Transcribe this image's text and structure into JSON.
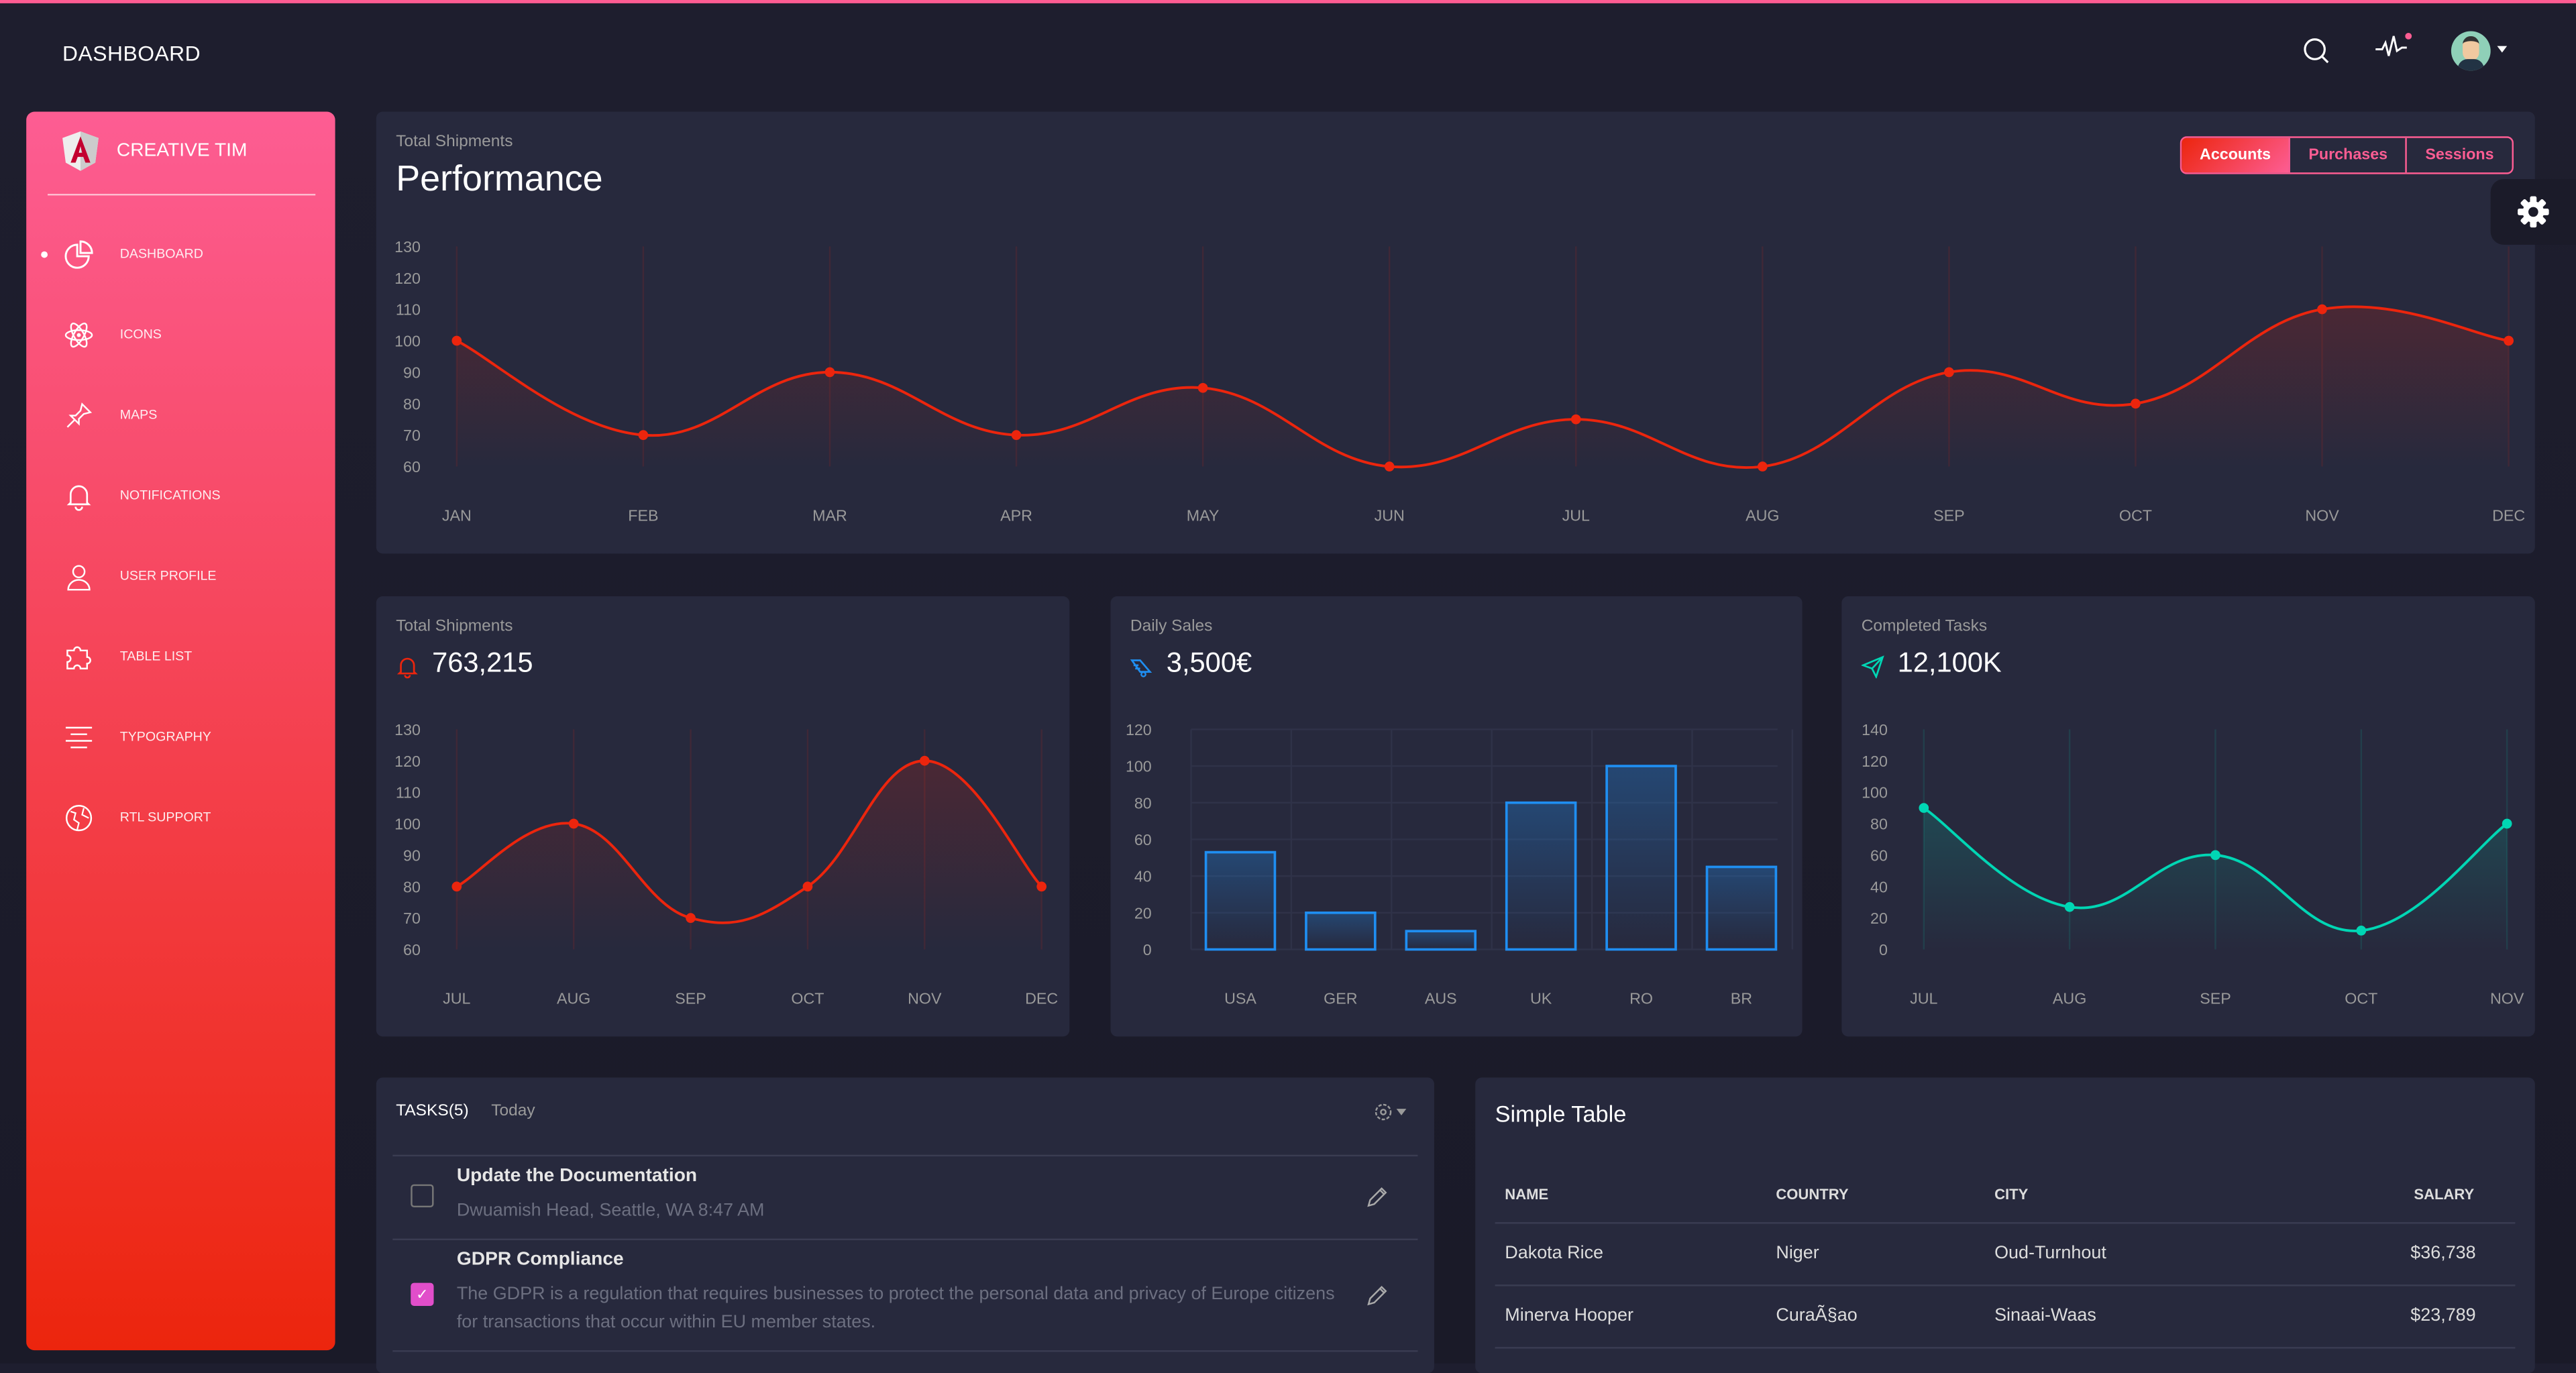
{
  "header": {
    "title": "DASHBOARD",
    "icons": [
      "search-icon",
      "pulse-icon",
      "avatar",
      "caret-down-icon"
    ]
  },
  "sidebar": {
    "brand": "CREATIVE TIM",
    "items": [
      {
        "label": "DASHBOARD",
        "icon": "chart-pie-icon",
        "active": true
      },
      {
        "label": "ICONS",
        "icon": "atom-icon"
      },
      {
        "label": "MAPS",
        "icon": "pin-icon"
      },
      {
        "label": "NOTIFICATIONS",
        "icon": "bell-icon"
      },
      {
        "label": "USER PROFILE",
        "icon": "user-icon"
      },
      {
        "label": "TABLE LIST",
        "icon": "puzzle-icon"
      },
      {
        "label": "TYPOGRAPHY",
        "icon": "align-center-icon"
      },
      {
        "label": "RTL SUPPORT",
        "icon": "world-icon"
      }
    ]
  },
  "colors": {
    "accent": "#fd5d93",
    "red": "#ec250d",
    "blue": "#1f8ef1",
    "green": "#00d6b4",
    "card": "#27293d"
  },
  "performance": {
    "subtitle": "Total Shipments",
    "title": "Performance",
    "buttons": [
      "Accounts",
      "Purchases",
      "Sessions"
    ],
    "active_button": "Accounts"
  },
  "cards": [
    {
      "title": "Total Shipments",
      "value": "763,215",
      "icon": "bell-icon"
    },
    {
      "title": "Daily Sales",
      "value": "3,500€",
      "icon": "delivery-icon"
    },
    {
      "title": "Completed Tasks",
      "value": "12,100K",
      "icon": "send-icon"
    }
  ],
  "chart_data": [
    {
      "type": "line",
      "categories": [
        "JAN",
        "FEB",
        "MAR",
        "APR",
        "MAY",
        "JUN",
        "JUL",
        "AUG",
        "SEP",
        "OCT",
        "NOV",
        "DEC"
      ],
      "values": [
        100,
        70,
        90,
        70,
        85,
        60,
        75,
        60,
        90,
        80,
        110,
        100
      ],
      "ylim": [
        60,
        130
      ],
      "yticks": [
        60,
        70,
        80,
        90,
        100,
        110,
        120,
        130
      ],
      "color": "#ec250d",
      "grid": "vertical"
    },
    {
      "type": "line",
      "categories": [
        "JUL",
        "AUG",
        "SEP",
        "OCT",
        "NOV",
        "DEC"
      ],
      "values": [
        80,
        100,
        70,
        80,
        120,
        80
      ],
      "ylim": [
        60,
        130
      ],
      "yticks": [
        60,
        70,
        80,
        90,
        100,
        110,
        120,
        130
      ],
      "color": "#ec250d",
      "grid": "vertical"
    },
    {
      "type": "bar",
      "categories": [
        "USA",
        "GER",
        "AUS",
        "UK",
        "RO",
        "BR"
      ],
      "values": [
        53,
        20,
        10,
        80,
        100,
        45
      ],
      "ylim": [
        0,
        120
      ],
      "yticks": [
        0,
        20,
        40,
        60,
        80,
        100,
        120
      ],
      "color": "#1f8ef1",
      "grid": "both"
    },
    {
      "type": "line",
      "categories": [
        "JUL",
        "AUG",
        "SEP",
        "OCT",
        "NOV"
      ],
      "values": [
        90,
        27,
        60,
        12,
        80
      ],
      "ylim": [
        0,
        140
      ],
      "yticks": [
        0,
        20,
        40,
        60,
        80,
        100,
        120,
        140
      ],
      "color": "#00d6b4",
      "grid": "vertical"
    }
  ],
  "tasks": {
    "title": "TASKS(5)",
    "subtitle": "Today",
    "items": [
      {
        "title": "Update the Documentation",
        "desc": "Dwuamish Head, Seattle, WA 8:47 AM",
        "checked": false
      },
      {
        "title": "GDPR Compliance",
        "desc": "The GDPR is a regulation that requires businesses to protect the personal data and privacy of Europe citizens for transactions that occur within EU member states.",
        "checked": true
      }
    ]
  },
  "table": {
    "title": "Simple Table",
    "headers": [
      "NAME",
      "COUNTRY",
      "CITY",
      "SALARY"
    ],
    "rows": [
      [
        "Dakota Rice",
        "Niger",
        "Oud-Turnhout",
        "$36,738"
      ],
      [
        "Minerva Hooper",
        "CuraÃ§ao",
        "Sinaai-Waas",
        "$23,789"
      ]
    ]
  }
}
